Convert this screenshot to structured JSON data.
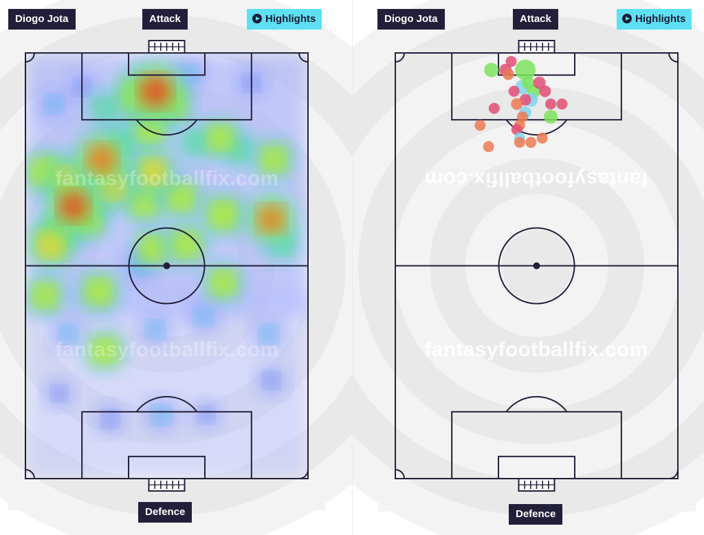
{
  "heatmap_panel": {
    "player_label": "Diogo Jota",
    "attack_label": "Attack",
    "defence_label": "Defence",
    "highlights_label": "Highlights",
    "watermark_mid": "fantasyfootballfix.com",
    "watermark_bottom": "fantasyfootballfix.com"
  },
  "shots_panel": {
    "player_label": "Diogo Jota",
    "attack_label": "Attack",
    "defence_label": "Defence",
    "highlights_label": "Highlights",
    "watermark_top": "fantasyfootballfix.com",
    "watermark_bottom": "fantasyfootballfix.com"
  },
  "colors": {
    "pitch_line": "#221f3a",
    "label_bg": "#221f3a",
    "highlights_bg": "#5ee0f3",
    "shot_goal": "#7ee35e",
    "shot_on_target": "#7fd3ee",
    "shot_blocked": "#e24d74",
    "shot_off_target": "#ec7a52"
  },
  "icons": {
    "highlights": "play-circle-icon"
  },
  "chart_data": [
    {
      "type": "heatmap",
      "title": "",
      "description_units": "pitch fraction: x 0=left touchline 1=right, y 0=attacking goal line 1=defending goal line, v=intensity 0-1",
      "hotspots": [
        {
          "x": 0.46,
          "y": 0.09,
          "v": 1.0
        },
        {
          "x": 0.39,
          "y": 0.1,
          "v": 0.55
        },
        {
          "x": 0.52,
          "y": 0.12,
          "v": 0.45
        },
        {
          "x": 0.28,
          "y": 0.13,
          "v": 0.35
        },
        {
          "x": 0.44,
          "y": 0.18,
          "v": 0.5
        },
        {
          "x": 0.34,
          "y": 0.21,
          "v": 0.4
        },
        {
          "x": 0.27,
          "y": 0.25,
          "v": 0.85
        },
        {
          "x": 0.3,
          "y": 0.31,
          "v": 0.7
        },
        {
          "x": 0.16,
          "y": 0.3,
          "v": 0.65
        },
        {
          "x": 0.07,
          "y": 0.28,
          "v": 0.55
        },
        {
          "x": 0.17,
          "y": 0.36,
          "v": 0.9
        },
        {
          "x": 0.12,
          "y": 0.42,
          "v": 0.45
        },
        {
          "x": 0.22,
          "y": 0.39,
          "v": 0.5
        },
        {
          "x": 0.45,
          "y": 0.28,
          "v": 0.6
        },
        {
          "x": 0.42,
          "y": 0.35,
          "v": 0.5
        },
        {
          "x": 0.55,
          "y": 0.34,
          "v": 0.5
        },
        {
          "x": 0.6,
          "y": 0.21,
          "v": 0.35
        },
        {
          "x": 0.69,
          "y": 0.2,
          "v": 0.45
        },
        {
          "x": 0.76,
          "y": 0.23,
          "v": 0.35
        },
        {
          "x": 0.7,
          "y": 0.38,
          "v": 0.55
        },
        {
          "x": 0.88,
          "y": 0.25,
          "v": 0.45
        },
        {
          "x": 0.87,
          "y": 0.39,
          "v": 0.75
        },
        {
          "x": 0.91,
          "y": 0.45,
          "v": 0.35
        },
        {
          "x": 0.09,
          "y": 0.45,
          "v": 0.65
        },
        {
          "x": 0.45,
          "y": 0.46,
          "v": 0.45
        },
        {
          "x": 0.57,
          "y": 0.45,
          "v": 0.5
        },
        {
          "x": 0.07,
          "y": 0.57,
          "v": 0.45
        },
        {
          "x": 0.26,
          "y": 0.56,
          "v": 0.5
        },
        {
          "x": 0.4,
          "y": 0.5,
          "v": 0.3
        },
        {
          "x": 0.7,
          "y": 0.54,
          "v": 0.45
        },
        {
          "x": 0.28,
          "y": 0.7,
          "v": 0.45
        },
        {
          "x": 0.46,
          "y": 0.65,
          "v": 0.25
        },
        {
          "x": 0.63,
          "y": 0.62,
          "v": 0.25
        },
        {
          "x": 0.15,
          "y": 0.66,
          "v": 0.25
        },
        {
          "x": 0.86,
          "y": 0.66,
          "v": 0.25
        },
        {
          "x": 0.87,
          "y": 0.77,
          "v": 0.2
        },
        {
          "x": 0.48,
          "y": 0.85,
          "v": 0.3
        },
        {
          "x": 0.3,
          "y": 0.86,
          "v": 0.2
        },
        {
          "x": 0.64,
          "y": 0.85,
          "v": 0.15
        },
        {
          "x": 0.12,
          "y": 0.8,
          "v": 0.15
        },
        {
          "x": 0.58,
          "y": 0.05,
          "v": 0.25
        },
        {
          "x": 0.8,
          "y": 0.07,
          "v": 0.2
        },
        {
          "x": 0.1,
          "y": 0.12,
          "v": 0.25
        },
        {
          "x": 0.2,
          "y": 0.08,
          "v": 0.2
        }
      ]
    },
    {
      "type": "scatter",
      "title": "",
      "description_units": "pitch fraction: x 0=left touchline 1=right, y 0=attacking goal line 1=defending goal line",
      "points": [
        {
          "x": 0.46,
          "y": 0.04,
          "r": 1.0,
          "outcome": "goal"
        },
        {
          "x": 0.34,
          "y": 0.04,
          "r": 0.55,
          "outcome": "goal"
        },
        {
          "x": 0.39,
          "y": 0.04,
          "r": 0.4,
          "outcome": "blocked"
        },
        {
          "x": 0.4,
          "y": 0.05,
          "r": 0.35,
          "outcome": "off_target"
        },
        {
          "x": 0.45,
          "y": 0.08,
          "r": 0.55,
          "outcome": "on_target"
        },
        {
          "x": 0.47,
          "y": 0.07,
          "r": 0.45,
          "outcome": "goal"
        },
        {
          "x": 0.49,
          "y": 0.09,
          "r": 0.5,
          "outcome": "goal"
        },
        {
          "x": 0.51,
          "y": 0.07,
          "r": 0.4,
          "outcome": "blocked"
        },
        {
          "x": 0.53,
          "y": 0.09,
          "r": 0.35,
          "outcome": "blocked"
        },
        {
          "x": 0.48,
          "y": 0.11,
          "r": 0.5,
          "outcome": "on_target"
        },
        {
          "x": 0.46,
          "y": 0.11,
          "r": 0.35,
          "outcome": "blocked"
        },
        {
          "x": 0.43,
          "y": 0.12,
          "r": 0.35,
          "outcome": "off_target"
        },
        {
          "x": 0.55,
          "y": 0.12,
          "r": 0.3,
          "outcome": "blocked"
        },
        {
          "x": 0.59,
          "y": 0.12,
          "r": 0.3,
          "outcome": "blocked"
        },
        {
          "x": 0.35,
          "y": 0.13,
          "r": 0.3,
          "outcome": "blocked"
        },
        {
          "x": 0.46,
          "y": 0.14,
          "r": 0.4,
          "outcome": "on_target"
        },
        {
          "x": 0.45,
          "y": 0.15,
          "r": 0.3,
          "outcome": "off_target"
        },
        {
          "x": 0.55,
          "y": 0.15,
          "r": 0.5,
          "outcome": "goal"
        },
        {
          "x": 0.3,
          "y": 0.17,
          "r": 0.3,
          "outcome": "off_target"
        },
        {
          "x": 0.44,
          "y": 0.17,
          "r": 0.3,
          "outcome": "off_target"
        },
        {
          "x": 0.43,
          "y": 0.18,
          "r": 0.3,
          "outcome": "blocked"
        },
        {
          "x": 0.44,
          "y": 0.2,
          "r": 0.3,
          "outcome": "on_target"
        },
        {
          "x": 0.52,
          "y": 0.2,
          "r": 0.3,
          "outcome": "off_target"
        },
        {
          "x": 0.33,
          "y": 0.22,
          "r": 0.3,
          "outcome": "off_target"
        },
        {
          "x": 0.44,
          "y": 0.21,
          "r": 0.3,
          "outcome": "off_target"
        },
        {
          "x": 0.48,
          "y": 0.21,
          "r": 0.3,
          "outcome": "off_target"
        },
        {
          "x": 0.41,
          "y": 0.02,
          "r": 0.3,
          "outcome": "blocked"
        },
        {
          "x": 0.42,
          "y": 0.09,
          "r": 0.3,
          "outcome": "blocked"
        }
      ]
    }
  ]
}
